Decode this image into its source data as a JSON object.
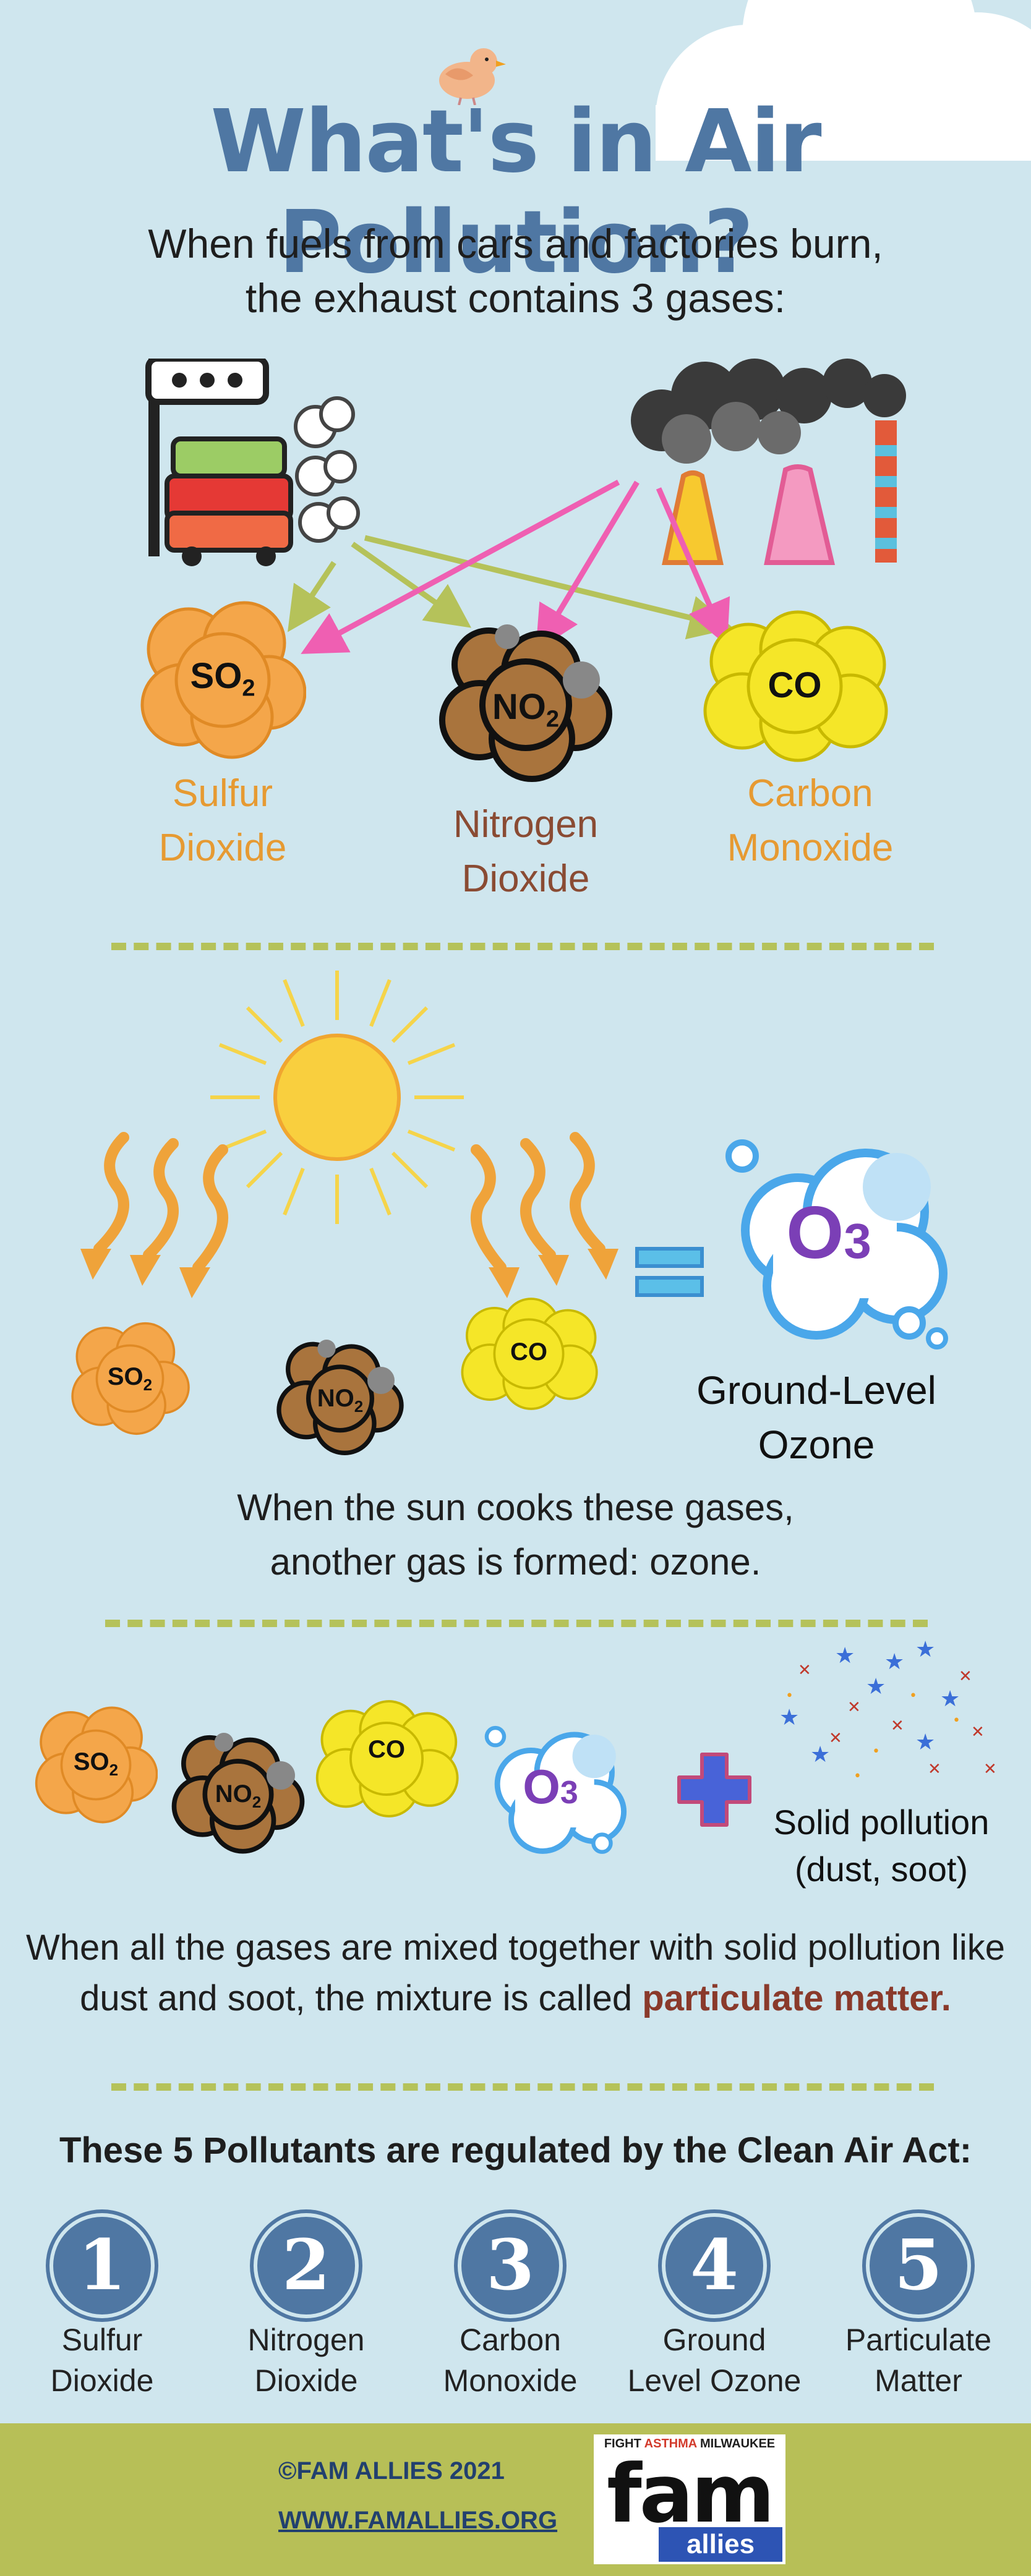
{
  "title": "What's in Air Pollution?",
  "intro": {
    "line1": "When fuels from cars and factories burn,",
    "line2": "the exhaust contains 3 gases:"
  },
  "gases": {
    "so2": {
      "formula": "SO",
      "sub": "2",
      "name_line1": "Sulfur",
      "name_line2": "Dioxide"
    },
    "no2": {
      "formula": "NO",
      "sub": "2",
      "name_line1": "Nitrogen",
      "name_line2": "Dioxide"
    },
    "co": {
      "formula": "CO",
      "name_line1": "Carbon",
      "name_line2": "Monoxide"
    }
  },
  "ozone": {
    "formula": "O",
    "sub": "3",
    "label_line1": "Ground-Level",
    "label_line2": "Ozone",
    "explain_line1": "When the sun cooks these gases,",
    "explain_line2": "another gas is formed: ozone."
  },
  "mixture": {
    "solid_line1": "Solid pollution",
    "solid_line2": "(dust, soot)",
    "text_line1": "When all the gases are mixed together with solid pollution like",
    "text_line2_prefix": "dust and soot, the mixture is called ",
    "text_highlight": "particulate matter."
  },
  "regulated": {
    "title": "These 5 Pollutants are regulated by the Clean Air Act:",
    "items": [
      {
        "number": "1",
        "line1": "Sulfur",
        "line2": "Dioxide"
      },
      {
        "number": "2",
        "line1": "Nitrogen",
        "line2": "Dioxide"
      },
      {
        "number": "3",
        "line1": "Carbon",
        "line2": "Monoxide"
      },
      {
        "number": "4",
        "line1": "Ground",
        "line2": "Level Ozone"
      },
      {
        "number": "5",
        "line1": "Particulate",
        "line2": "Matter"
      }
    ]
  },
  "footer": {
    "copyright": "©FAM ALLIES 2021",
    "website": "WWW.FAMALLIES.ORG",
    "logo_top_left": "FIGHT ",
    "logo_top_mid": "ASTHMA",
    "logo_top_right": " MILWAUKEE",
    "logo_main": "fam",
    "logo_sub": "allies"
  },
  "colors": {
    "background": "#cfe6ee",
    "title": "#4f77a3",
    "orange_gas": "#f4a64a",
    "brown_gas": "#a9743d",
    "yellow_gas": "#f5e628",
    "pink_arrow": "#ef5fb2",
    "olive_arrow": "#b5c25a",
    "footer": "#b7bf57"
  }
}
